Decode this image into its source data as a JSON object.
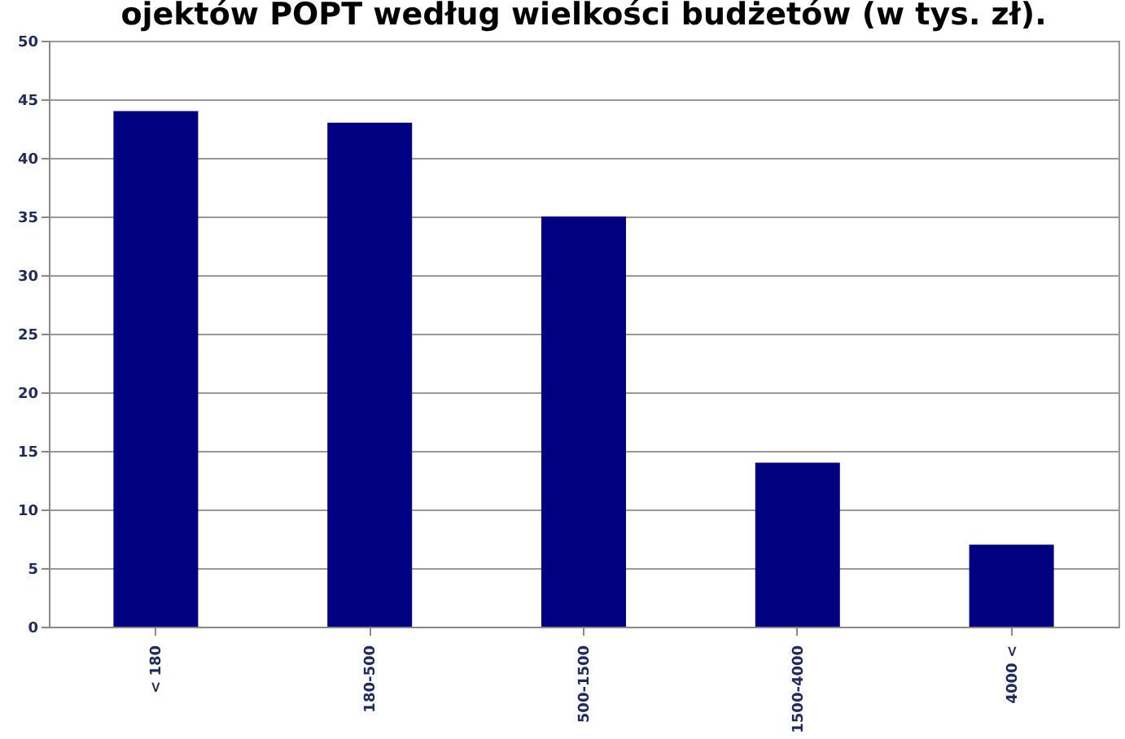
{
  "chart_data": {
    "type": "bar",
    "title": "ojektów POPT według wielkości budżetów (w tys. zł).",
    "categories": [
      "< 180",
      "180-500",
      "500-1500",
      "1500-4000",
      "4000 <"
    ],
    "values": [
      44,
      43,
      35,
      14,
      7
    ],
    "color": "#000080",
    "ylim": [
      0,
      50
    ],
    "yticks": [
      0,
      5,
      10,
      15,
      20,
      25,
      30,
      35,
      40,
      45,
      50
    ],
    "grid": "y"
  }
}
